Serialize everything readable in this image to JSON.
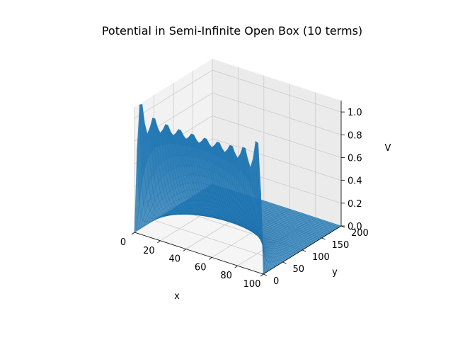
{
  "chart_data": {
    "type": "surface3d",
    "title": "Potential in Semi-Infinite Open Box (10 terms)",
    "xlabel": "x",
    "ylabel": "y",
    "zlabel": "V",
    "xlim": [
      0,
      100
    ],
    "ylim": [
      0,
      200
    ],
    "zlim": [
      0,
      1.1
    ],
    "x_ticks": [
      "0",
      "20",
      "40",
      "60",
      "80",
      "100"
    ],
    "y_ticks": [
      "0",
      "50",
      "100",
      "150",
      "200"
    ],
    "z_ticks": [
      "0.0",
      "0.2",
      "0.4",
      "0.6",
      "0.8",
      "1.0"
    ],
    "grid": true,
    "terms": 10,
    "boundary_condition": {
      "edge": "y = 0",
      "value": 1.0,
      "other_edges": 0.0
    },
    "series": [
      {
        "surface_color": "#1f77b4",
        "x": [
          0,
          10,
          20,
          30,
          40,
          50,
          60,
          70,
          80,
          90,
          100
        ],
        "y": [
          0,
          20,
          40,
          60,
          80,
          100,
          120,
          140,
          160,
          180,
          200
        ],
        "z_at_y0": [
          0.0,
          1.1,
          1.0,
          0.88,
          1.09,
          0.87,
          1.09,
          0.88,
          1.0,
          1.1,
          0.0
        ]
      }
    ],
    "pane_color": "#f2f2f2",
    "grid_color": "#cccccc"
  }
}
